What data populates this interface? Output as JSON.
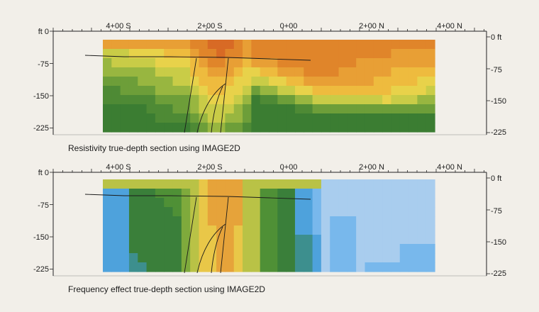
{
  "colors": {
    "background": "#f2efe9",
    "resistivity_palette": [
      "#c8521f",
      "#d86a25",
      "#e0852a",
      "#e89f35",
      "#eebb3e",
      "#e8d24a",
      "#c9cc47",
      "#98b640",
      "#6d9e39",
      "#4e8a35",
      "#3b7d32"
    ],
    "frequency_palette": [
      "#c85a22",
      "#dd7f2b",
      "#e6a33a",
      "#e9c748",
      "#b9c246",
      "#7faa3c",
      "#4f9036",
      "#3a7f3a",
      "#3d8f8e",
      "#4ea2dc",
      "#78b8ec",
      "#a9cdee"
    ]
  },
  "panels": [
    {
      "id": "resistivity",
      "caption": "Resistivity true-depth section using IMAGE2D",
      "station_labels": [
        "4+00 S",
        "2+00 S",
        "0+00",
        "2+00 N",
        "4+00 N"
      ],
      "depth_labels_left": [
        "ft 0",
        "-75",
        "-150",
        "-225"
      ],
      "depth_labels_right": [
        "0 ft",
        "-75",
        "-150",
        "-225"
      ]
    },
    {
      "id": "frequency",
      "caption": "Frequency effect true-depth section using IMAGE2D",
      "station_labels": [
        "4+00 S",
        "2+00 S",
        "0+00",
        "2+00 N",
        "4+00 N"
      ],
      "depth_labels_left": [
        "ft 0",
        "-75",
        "-150",
        "-225"
      ],
      "depth_labels_right": [
        "0 ft",
        "-75",
        "-150",
        "-225"
      ]
    }
  ]
}
